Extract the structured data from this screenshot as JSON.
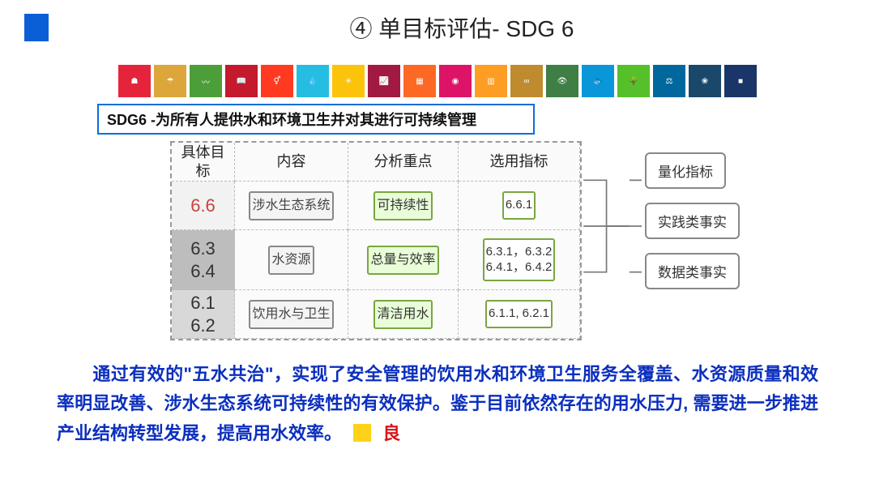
{
  "title": "④ 单目标评估- SDG 6",
  "sdg_icons": [
    {
      "n": 1,
      "color": "#e5243b"
    },
    {
      "n": 2,
      "color": "#dda63a"
    },
    {
      "n": 3,
      "color": "#4c9f38"
    },
    {
      "n": 4,
      "color": "#c5192d"
    },
    {
      "n": 5,
      "color": "#ff3a21"
    },
    {
      "n": 6,
      "color": "#26bde2"
    },
    {
      "n": 7,
      "color": "#fcc30b"
    },
    {
      "n": 8,
      "color": "#a21942"
    },
    {
      "n": 9,
      "color": "#fd6925"
    },
    {
      "n": 10,
      "color": "#dd1367"
    },
    {
      "n": 11,
      "color": "#fd9d24"
    },
    {
      "n": 12,
      "color": "#bf8b2e"
    },
    {
      "n": 13,
      "color": "#3f7e44"
    },
    {
      "n": 14,
      "color": "#0a97d9"
    },
    {
      "n": 15,
      "color": "#56c02b"
    },
    {
      "n": 16,
      "color": "#00689d"
    },
    {
      "n": 17,
      "color": "#19486a"
    },
    {
      "n": 18,
      "color": "#1a3668"
    }
  ],
  "sdg6_bar": "SDG6 -为所有人提供水和环境卫生并对其进行可持续管理",
  "table": {
    "headers": [
      "具体目标",
      "内容",
      "分析重点",
      "选用指标"
    ],
    "rows": [
      {
        "id": "6.6",
        "content": "涉水生态系统",
        "focus": "可持续性",
        "indicator": "6.6.1",
        "id_class": "side-66",
        "id_color": "c-66"
      },
      {
        "id": "6.3\n6.4",
        "content": "水资源",
        "focus": "总量与效率",
        "indicator": "6.3.1，6.3.2\n6.4.1，6.4.2",
        "id_class": "side-dk",
        "id_color": "c1"
      },
      {
        "id": "6.1\n6.2",
        "content": "饮用水与卫生",
        "focus": "清洁用水",
        "indicator": "6.1.1, 6.2.1",
        "id_class": "side-md",
        "id_color": "c1"
      }
    ]
  },
  "right_boxes": [
    "量化指标",
    "实践类事实",
    "数据类事实"
  ],
  "paragraph": "通过有效的\"五水共治\"，实现了安全管理的饮用水和环境卫生服务全覆盖、水资源质量和效率明显改善、涉水生态系统可持续性的有效保护。鉴于目前依然存在的用水压力, 需要进一步推进产业结构转型发展，提高用水效率。",
  "rating": "良",
  "colors": {
    "title_blue": "#0a5fd6",
    "box_green": "#7aa63f",
    "box_green_bg": "#e8fdd8",
    "para_blue": "#0b2fbe",
    "rating_red": "#d81515",
    "rating_yellow": "#ffd21a",
    "dash_border": "#999",
    "gray_box": "#888"
  }
}
